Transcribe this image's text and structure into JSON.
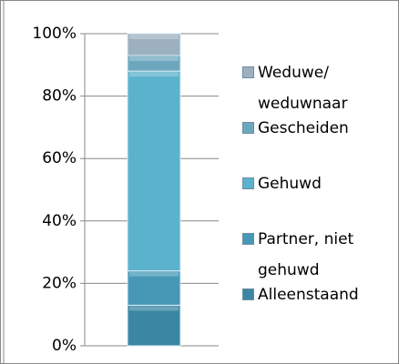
{
  "chart_data": {
    "type": "stacked_bar",
    "categories": [
      null
    ],
    "series": [
      {
        "name": "Alleenstaand",
        "color": "#3b87a3",
        "values": [
          13
        ]
      },
      {
        "name": "Partner, niet gehuwd",
        "color": "#4698b6",
        "values": [
          11
        ]
      },
      {
        "name": "Gehuwd",
        "color": "#5bb2cd",
        "values": [
          64
        ]
      },
      {
        "name": "Gescheiden",
        "color": "#6ca7bf",
        "values": [
          5
        ]
      },
      {
        "name": "Weduwe/ weduwnaar",
        "color": "#9db0bf",
        "values": [
          7
        ]
      }
    ],
    "ylim": [
      0,
      100
    ],
    "yticks": [
      {
        "value": 0,
        "label": "0%"
      },
      {
        "value": 20,
        "label": "20%"
      },
      {
        "value": 40,
        "label": "40%"
      },
      {
        "value": 60,
        "label": "60%"
      },
      {
        "value": 80,
        "label": "80%"
      },
      {
        "value": 100,
        "label": "100%"
      }
    ],
    "grid": true,
    "legend": "right"
  }
}
